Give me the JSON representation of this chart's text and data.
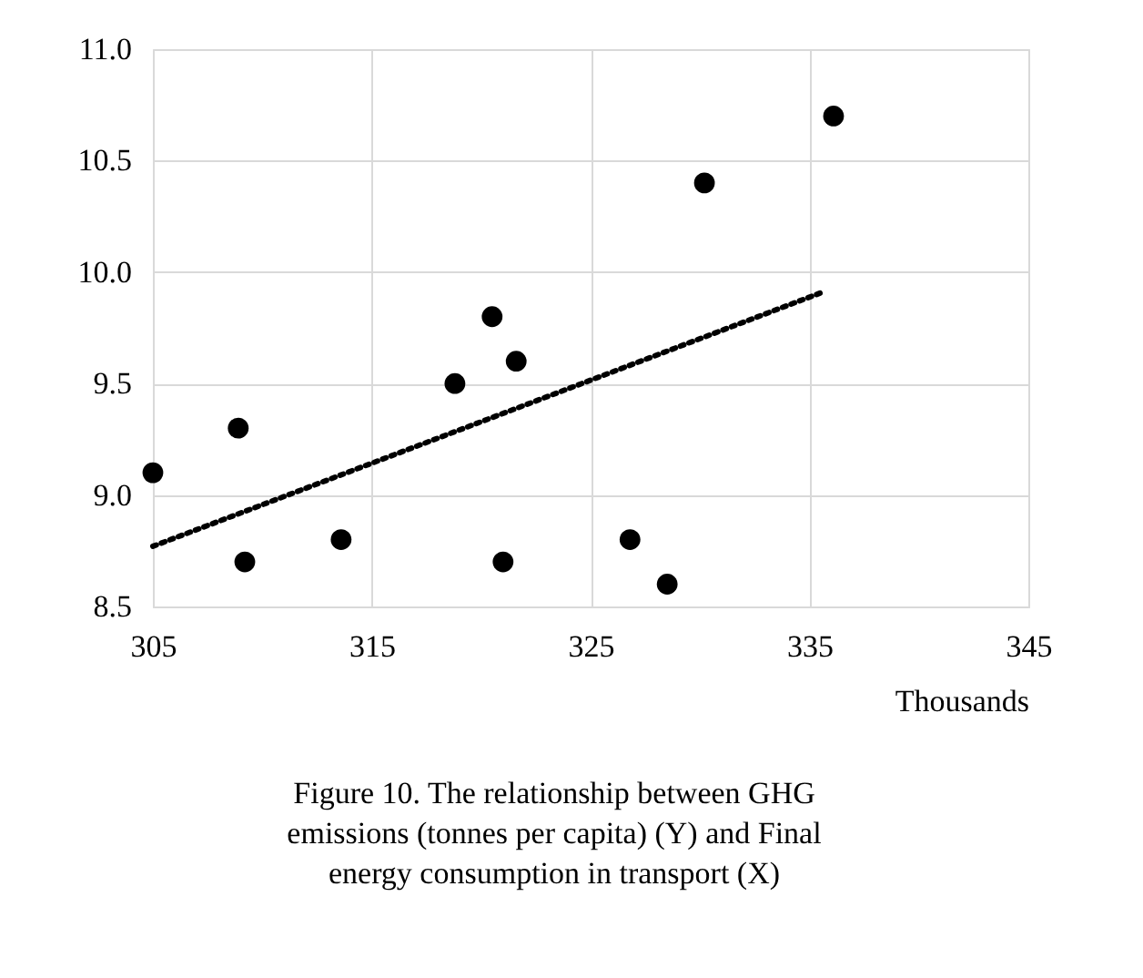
{
  "chart_data": {
    "type": "scatter",
    "xlabel": "Thousands",
    "x": [
      305.0,
      308.9,
      309.2,
      313.6,
      318.8,
      320.5,
      321.6,
      321.0,
      326.8,
      328.5,
      330.2,
      336.1
    ],
    "series": [
      {
        "type": "scatter",
        "marker": "circle",
        "color": "#000000",
        "values": [
          9.1,
          9.3,
          8.7,
          8.8,
          9.5,
          9.8,
          9.6,
          8.7,
          8.8,
          8.6,
          10.4,
          10.7
        ]
      },
      {
        "type": "line",
        "color": "#000000",
        "x": [
          305.0,
          335.6
        ],
        "values": [
          8.77,
          9.91
        ],
        "line_style": "dotted",
        "marker": "none"
      }
    ],
    "xlim": [
      305,
      345
    ],
    "xticks": [
      305,
      315,
      325,
      335,
      345
    ],
    "ylim": [
      8.5,
      11.0
    ],
    "yticks": [
      {
        "value": 8.5,
        "label": "8.5"
      },
      {
        "value": 9.0,
        "label": "9.0"
      },
      {
        "value": 9.5,
        "label": "9.5"
      },
      {
        "value": 10.0,
        "label": "10.0"
      },
      {
        "value": 10.5,
        "label": "10.5"
      },
      {
        "value": 11.0,
        "label": "11.0"
      }
    ],
    "grid": true,
    "annotations": [
      "Figure 10. The relationship  between GHG emissions (tonnes per capita) (Y) and Final energy consumption in transport  (X)"
    ]
  }
}
